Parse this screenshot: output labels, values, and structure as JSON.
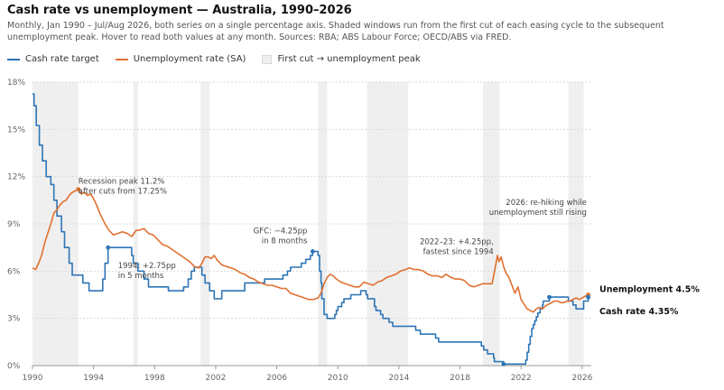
{
  "title": "Cash rate vs unemployment — Australia, 1990–2026",
  "subtitle": "Monthly, Jan 1990 – Jul/Aug 2026, both series on a single percentage axis. Shaded windows run from the first cut of each easing cycle to the subsequent unemployment peak. Hover to read both values at any month. Sources: RBA; ABS Labour Force; OECD/ABS via FRED.",
  "legend": {
    "cash": "Cash rate target",
    "unemp": "Unemployment rate (SA)",
    "window": "First cut → unemployment peak"
  },
  "colors": {
    "cash": "#2e75b6",
    "unemp": "#e07030",
    "window": "#efefef",
    "grid": "#d9d9d9"
  },
  "end_labels": {
    "unemp": "Unemployment 4.5%",
    "cash": "Cash rate 4.35%"
  },
  "annotations": [
    {
      "lines": [
        "Recession peak 11.2%",
        "after cuts from 17.25%"
      ],
      "x": 1993.0,
      "y": 11.55,
      "anchor": "start"
    },
    {
      "lines": [
        "1994: +2.75pp",
        "in 5 months"
      ],
      "x": 1995.6,
      "y": 6.2,
      "anchor": "start"
    },
    {
      "lines": [
        "GFC: −4.25pp",
        "in 8 months"
      ],
      "x": 2008.0,
      "y": 8.4,
      "anchor": "end"
    },
    {
      "lines": [
        "2022–23: +4.25pp,",
        "fastest since 1994"
      ],
      "x": 2020.2,
      "y": 7.7,
      "anchor": "end"
    },
    {
      "lines": [
        "2026: re-hiking while",
        "unemployment still rising"
      ],
      "x": 2026.3,
      "y": 10.2,
      "anchor": "end"
    }
  ],
  "chart_data": {
    "type": "line",
    "xlabel": "",
    "ylabel": "",
    "xlim": [
      1990,
      2026.6
    ],
    "ylim": [
      0,
      18
    ],
    "x_ticks": [
      "1990",
      "1994",
      "1998",
      "2002",
      "2006",
      "2010",
      "2014",
      "2018",
      "2022",
      "2026"
    ],
    "y_ticks": [
      "0%",
      "3%",
      "6%",
      "9%",
      "12%",
      "15%",
      "18%"
    ],
    "grid": true,
    "legend_position": "top-left",
    "shaded_windows": [
      [
        1990.0,
        1993.0
      ],
      [
        1996.6,
        1996.9
      ],
      [
        2001.0,
        2001.6
      ],
      [
        2008.7,
        2009.3
      ],
      [
        2011.9,
        2014.6
      ],
      [
        2019.5,
        2020.6
      ],
      [
        2025.1,
        2026.1
      ]
    ],
    "series": [
      {
        "name": "Cash rate target",
        "points": [
          [
            1990.0,
            17.25
          ],
          [
            1990.1,
            16.5
          ],
          [
            1990.25,
            15.25
          ],
          [
            1990.45,
            14.0
          ],
          [
            1990.65,
            13.0
          ],
          [
            1990.9,
            12.0
          ],
          [
            1991.2,
            11.5
          ],
          [
            1991.4,
            10.5
          ],
          [
            1991.6,
            9.5
          ],
          [
            1991.9,
            8.5
          ],
          [
            1992.1,
            7.5
          ],
          [
            1992.4,
            6.5
          ],
          [
            1992.6,
            5.75
          ],
          [
            1993.3,
            5.25
          ],
          [
            1993.7,
            4.75
          ],
          [
            1994.6,
            5.5
          ],
          [
            1994.75,
            6.5
          ],
          [
            1994.95,
            7.5
          ],
          [
            1996.5,
            7.0
          ],
          [
            1996.6,
            6.5
          ],
          [
            1996.9,
            6.0
          ],
          [
            1997.3,
            5.5
          ],
          [
            1997.6,
            5.0
          ],
          [
            1998.9,
            4.75
          ],
          [
            1999.9,
            5.0
          ],
          [
            2000.2,
            5.5
          ],
          [
            2000.4,
            6.0
          ],
          [
            2000.6,
            6.25
          ],
          [
            2001.1,
            5.75
          ],
          [
            2001.3,
            5.25
          ],
          [
            2001.6,
            4.75
          ],
          [
            2001.9,
            4.25
          ],
          [
            2002.4,
            4.75
          ],
          [
            2003.9,
            5.25
          ],
          [
            2005.2,
            5.5
          ],
          [
            2006.4,
            5.75
          ],
          [
            2006.7,
            6.0
          ],
          [
            2006.9,
            6.25
          ],
          [
            2007.6,
            6.5
          ],
          [
            2007.9,
            6.75
          ],
          [
            2008.2,
            7.0
          ],
          [
            2008.35,
            7.25
          ],
          [
            2008.7,
            7.0
          ],
          [
            2008.8,
            6.0
          ],
          [
            2008.9,
            5.25
          ],
          [
            2008.95,
            4.25
          ],
          [
            2009.1,
            3.25
          ],
          [
            2009.3,
            3.0
          ],
          [
            2009.8,
            3.25
          ],
          [
            2009.9,
            3.5
          ],
          [
            2010.0,
            3.75
          ],
          [
            2010.25,
            4.0
          ],
          [
            2010.4,
            4.25
          ],
          [
            2010.85,
            4.5
          ],
          [
            2011.5,
            4.75
          ],
          [
            2011.85,
            4.5
          ],
          [
            2011.95,
            4.25
          ],
          [
            2012.4,
            3.75
          ],
          [
            2012.5,
            3.5
          ],
          [
            2012.8,
            3.25
          ],
          [
            2012.95,
            3.0
          ],
          [
            2013.35,
            2.75
          ],
          [
            2013.6,
            2.5
          ],
          [
            2015.1,
            2.25
          ],
          [
            2015.4,
            2.0
          ],
          [
            2016.4,
            1.75
          ],
          [
            2016.6,
            1.5
          ],
          [
            2019.4,
            1.25
          ],
          [
            2019.55,
            1.0
          ],
          [
            2019.8,
            0.75
          ],
          [
            2020.2,
            0.5
          ],
          [
            2020.25,
            0.25
          ],
          [
            2020.85,
            0.1
          ],
          [
            2022.3,
            0.35
          ],
          [
            2022.4,
            0.85
          ],
          [
            2022.5,
            1.35
          ],
          [
            2022.6,
            1.85
          ],
          [
            2022.7,
            2.35
          ],
          [
            2022.8,
            2.6
          ],
          [
            2022.9,
            2.85
          ],
          [
            2023.0,
            3.1
          ],
          [
            2023.1,
            3.35
          ],
          [
            2023.25,
            3.6
          ],
          [
            2023.4,
            3.85
          ],
          [
            2023.45,
            4.1
          ],
          [
            2023.85,
            4.35
          ],
          [
            2025.1,
            4.1
          ],
          [
            2025.4,
            3.85
          ],
          [
            2025.6,
            3.6
          ],
          [
            2026.1,
            4.1
          ],
          [
            2026.4,
            4.35
          ]
        ]
      },
      {
        "name": "Unemployment rate (SA)",
        "points": [
          [
            1990.0,
            6.2
          ],
          [
            1990.2,
            6.1
          ],
          [
            1990.4,
            6.5
          ],
          [
            1990.6,
            7.0
          ],
          [
            1990.8,
            7.8
          ],
          [
            1991.0,
            8.4
          ],
          [
            1991.2,
            9.0
          ],
          [
            1991.4,
            9.7
          ],
          [
            1991.6,
            9.9
          ],
          [
            1991.8,
            10.2
          ],
          [
            1992.0,
            10.4
          ],
          [
            1992.2,
            10.5
          ],
          [
            1992.4,
            10.8
          ],
          [
            1992.6,
            11.0
          ],
          [
            1992.8,
            11.1
          ],
          [
            1993.0,
            11.2
          ],
          [
            1993.2,
            10.9
          ],
          [
            1993.4,
            11.0
          ],
          [
            1993.6,
            10.8
          ],
          [
            1993.8,
            10.9
          ],
          [
            1994.0,
            10.6
          ],
          [
            1994.2,
            10.2
          ],
          [
            1994.4,
            9.7
          ],
          [
            1994.6,
            9.3
          ],
          [
            1994.8,
            8.9
          ],
          [
            1995.0,
            8.6
          ],
          [
            1995.3,
            8.3
          ],
          [
            1995.6,
            8.4
          ],
          [
            1995.9,
            8.5
          ],
          [
            1996.2,
            8.4
          ],
          [
            1996.5,
            8.2
          ],
          [
            1996.8,
            8.6
          ],
          [
            1997.0,
            8.6
          ],
          [
            1997.3,
            8.7
          ],
          [
            1997.6,
            8.4
          ],
          [
            1997.9,
            8.3
          ],
          [
            1998.2,
            8.0
          ],
          [
            1998.5,
            7.7
          ],
          [
            1998.8,
            7.6
          ],
          [
            1999.1,
            7.4
          ],
          [
            1999.4,
            7.2
          ],
          [
            1999.7,
            7.0
          ],
          [
            2000.0,
            6.8
          ],
          [
            2000.3,
            6.6
          ],
          [
            2000.6,
            6.3
          ],
          [
            2000.9,
            6.2
          ],
          [
            2001.1,
            6.5
          ],
          [
            2001.3,
            6.9
          ],
          [
            2001.5,
            6.9
          ],
          [
            2001.7,
            6.8
          ],
          [
            2001.9,
            7.0
          ],
          [
            2002.1,
            6.7
          ],
          [
            2002.4,
            6.4
          ],
          [
            2002.7,
            6.3
          ],
          [
            2003.0,
            6.2
          ],
          [
            2003.3,
            6.1
          ],
          [
            2003.6,
            5.9
          ],
          [
            2003.9,
            5.8
          ],
          [
            2004.2,
            5.6
          ],
          [
            2004.5,
            5.5
          ],
          [
            2004.8,
            5.3
          ],
          [
            2005.1,
            5.2
          ],
          [
            2005.4,
            5.1
          ],
          [
            2005.7,
            5.1
          ],
          [
            2006.0,
            5.0
          ],
          [
            2006.3,
            4.9
          ],
          [
            2006.6,
            4.9
          ],
          [
            2006.9,
            4.6
          ],
          [
            2007.2,
            4.5
          ],
          [
            2007.5,
            4.4
          ],
          [
            2007.8,
            4.3
          ],
          [
            2008.1,
            4.2
          ],
          [
            2008.4,
            4.2
          ],
          [
            2008.7,
            4.3
          ],
          [
            2008.9,
            4.6
          ],
          [
            2009.1,
            5.2
          ],
          [
            2009.3,
            5.6
          ],
          [
            2009.5,
            5.8
          ],
          [
            2009.7,
            5.7
          ],
          [
            2009.9,
            5.5
          ],
          [
            2010.2,
            5.3
          ],
          [
            2010.5,
            5.2
          ],
          [
            2010.8,
            5.1
          ],
          [
            2011.1,
            5.0
          ],
          [
            2011.4,
            5.0
          ],
          [
            2011.7,
            5.3
          ],
          [
            2012.0,
            5.2
          ],
          [
            2012.3,
            5.1
          ],
          [
            2012.6,
            5.3
          ],
          [
            2012.9,
            5.4
          ],
          [
            2013.2,
            5.6
          ],
          [
            2013.5,
            5.7
          ],
          [
            2013.8,
            5.8
          ],
          [
            2014.1,
            6.0
          ],
          [
            2014.4,
            6.1
          ],
          [
            2014.7,
            6.2
          ],
          [
            2015.0,
            6.1
          ],
          [
            2015.3,
            6.1
          ],
          [
            2015.6,
            6.0
          ],
          [
            2015.9,
            5.8
          ],
          [
            2016.2,
            5.7
          ],
          [
            2016.5,
            5.7
          ],
          [
            2016.8,
            5.6
          ],
          [
            2017.1,
            5.8
          ],
          [
            2017.4,
            5.6
          ],
          [
            2017.7,
            5.5
          ],
          [
            2018.0,
            5.5
          ],
          [
            2018.3,
            5.4
          ],
          [
            2018.6,
            5.1
          ],
          [
            2018.9,
            5.0
          ],
          [
            2019.2,
            5.1
          ],
          [
            2019.5,
            5.2
          ],
          [
            2019.8,
            5.2
          ],
          [
            2020.1,
            5.2
          ],
          [
            2020.3,
            6.2
          ],
          [
            2020.45,
            7.0
          ],
          [
            2020.55,
            6.6
          ],
          [
            2020.7,
            6.9
          ],
          [
            2020.85,
            6.3
          ],
          [
            2021.0,
            5.9
          ],
          [
            2021.2,
            5.6
          ],
          [
            2021.4,
            5.1
          ],
          [
            2021.6,
            4.6
          ],
          [
            2021.8,
            5.0
          ],
          [
            2022.0,
            4.2
          ],
          [
            2022.2,
            3.9
          ],
          [
            2022.4,
            3.6
          ],
          [
            2022.6,
            3.5
          ],
          [
            2022.8,
            3.4
          ],
          [
            2023.0,
            3.6
          ],
          [
            2023.2,
            3.7
          ],
          [
            2023.4,
            3.6
          ],
          [
            2023.6,
            3.8
          ],
          [
            2023.8,
            3.9
          ],
          [
            2024.0,
            4.0
          ],
          [
            2024.2,
            4.1
          ],
          [
            2024.4,
            4.1
          ],
          [
            2024.6,
            4.0
          ],
          [
            2024.8,
            4.0
          ],
          [
            2025.0,
            4.1
          ],
          [
            2025.2,
            4.1
          ],
          [
            2025.4,
            4.2
          ],
          [
            2025.6,
            4.3
          ],
          [
            2025.8,
            4.2
          ],
          [
            2026.0,
            4.3
          ],
          [
            2026.2,
            4.4
          ],
          [
            2026.4,
            4.5
          ]
        ]
      }
    ]
  }
}
